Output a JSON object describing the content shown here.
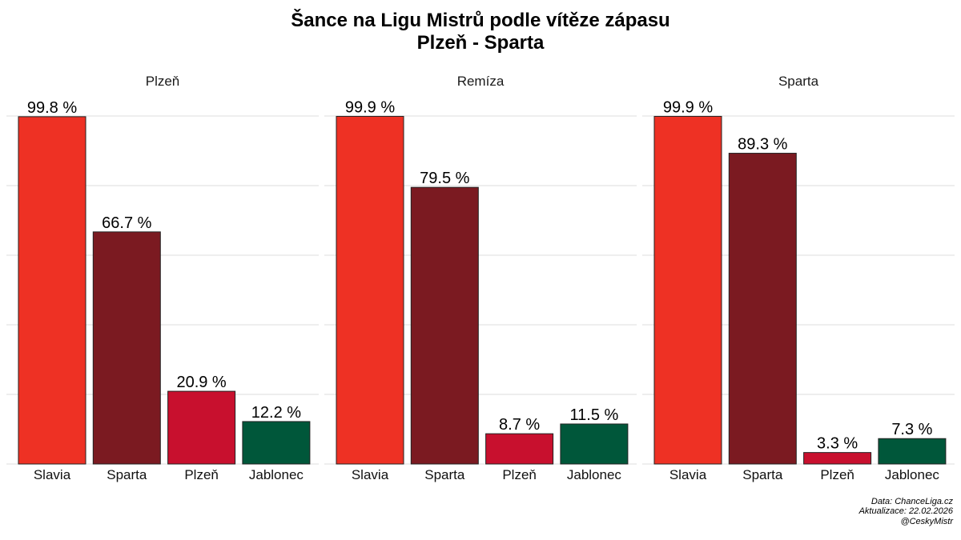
{
  "chart_data": {
    "type": "bar",
    "title": "Šance na Ligu Mistrů podle vítěze zápasu",
    "subtitle": "Plzeň - Sparta",
    "categories": [
      "Slavia",
      "Sparta",
      "Plzeň",
      "Jablonec"
    ],
    "category_colors": [
      "#ee3124",
      "#7b1a21",
      "#c8102e",
      "#00573a"
    ],
    "ylim": [
      0,
      100
    ],
    "grid": true,
    "value_suffix": " %",
    "panels": [
      {
        "name": "Plzeň",
        "values": [
          99.8,
          66.7,
          20.9,
          12.2
        ]
      },
      {
        "name": "Remíza",
        "values": [
          99.9,
          79.5,
          8.7,
          11.5
        ]
      },
      {
        "name": "Sparta",
        "values": [
          99.9,
          89.3,
          3.3,
          7.3
        ]
      }
    ]
  },
  "caption": {
    "line1": "Data: ChanceLiga.cz",
    "line2": "Aktualizace:  22.02.2026",
    "line3": "@CeskyMistr"
  }
}
